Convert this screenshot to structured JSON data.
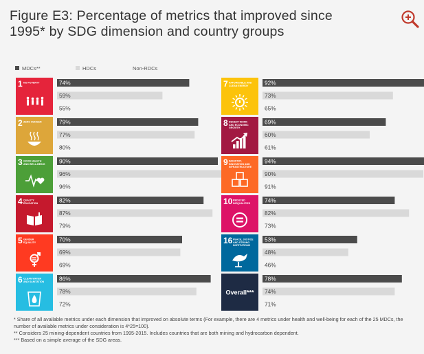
{
  "title": "Figure E3: Percentage of metrics that improved since 1995* by SDG dimension and country groups",
  "zoom_icon": "zoom-in-icon",
  "colors": {
    "mdc": "#4b4b4b",
    "hdc": "#d9d9d9",
    "background": "#f4f4f4",
    "label_mdc": "#ffffff",
    "label_other": "#444444",
    "zoom_accent": "#c0392b"
  },
  "chart_data": {
    "type": "bar",
    "orientation": "horizontal",
    "legend": [
      "MDCs**",
      "HDCs",
      "Non-RDCs"
    ],
    "legend_placement": "top-left",
    "unit": "%",
    "groups": [
      {
        "code": "1",
        "tile_text": "NO POVERTY",
        "icon": "family-icon",
        "color": "#e5243b",
        "values": [
          74,
          59,
          55
        ]
      },
      {
        "code": "2",
        "tile_text": "ZERO HUNGER",
        "icon": "food-bowl-icon",
        "color": "#dda63a",
        "values": [
          79,
          77,
          80
        ]
      },
      {
        "code": "3",
        "tile_text": "GOOD HEALTH AND WELL-BEING",
        "icon": "heartbeat-icon",
        "color": "#4c9f38",
        "values": [
          90,
          96,
          96
        ]
      },
      {
        "code": "4",
        "tile_text": "QUALITY EDUCATION",
        "icon": "book-icon",
        "color": "#c5192d",
        "values": [
          82,
          87,
          79
        ]
      },
      {
        "code": "5",
        "tile_text": "GENDER EQUALITY",
        "icon": "gender-symbol-icon",
        "color": "#ff3a21",
        "values": [
          70,
          69,
          69
        ]
      },
      {
        "code": "6",
        "tile_text": "CLEAN WATER AND SANITATION",
        "icon": "water-drop-icon",
        "color": "#26bde2",
        "values": [
          86,
          78,
          72
        ]
      },
      {
        "code": "7",
        "tile_text": "AFFORDABLE AND CLEAN ENERGY",
        "icon": "sun-power-icon",
        "color": "#fcc30b",
        "values": [
          92,
          73,
          65
        ]
      },
      {
        "code": "8",
        "tile_text": "DECENT WORK AND ECONOMIC GROWTH",
        "icon": "growth-chart-icon",
        "color": "#a21942",
        "values": [
          69,
          60,
          61
        ]
      },
      {
        "code": "9",
        "tile_text": "INDUSTRY, INNOVATION AND INFRASTRUCTURE",
        "icon": "cubes-icon",
        "color": "#fd6925",
        "values": [
          94,
          90,
          91
        ]
      },
      {
        "code": "10",
        "tile_text": "REDUCED INEQUALITIES",
        "icon": "equal-sign-icon",
        "color": "#dd1367",
        "values": [
          74,
          82,
          73
        ]
      },
      {
        "code": "16",
        "tile_text": "PEACE, JUSTICE AND STRONG INSTITUTIONS",
        "icon": "dove-icon",
        "color": "#00689d",
        "values": [
          53,
          48,
          46
        ]
      },
      {
        "code": "",
        "tile_text": "Overall***",
        "icon": "",
        "color": "#1e2b44",
        "values": [
          78,
          74,
          71
        ]
      }
    ]
  },
  "footnotes": [
    "* Share of all available metrics under each dimension that improved on absolute terms (For example, there are 4 metrics under health and well-being for each of the 25 MDCs, the number of available metrics under consideration is 4*25=100).",
    "** Considers 25 mining-dependent countries from 1995-2015. Includes countries that are both mining and hydrocarbon dependent.",
    "*** Based on a simple average of the SDG areas."
  ]
}
